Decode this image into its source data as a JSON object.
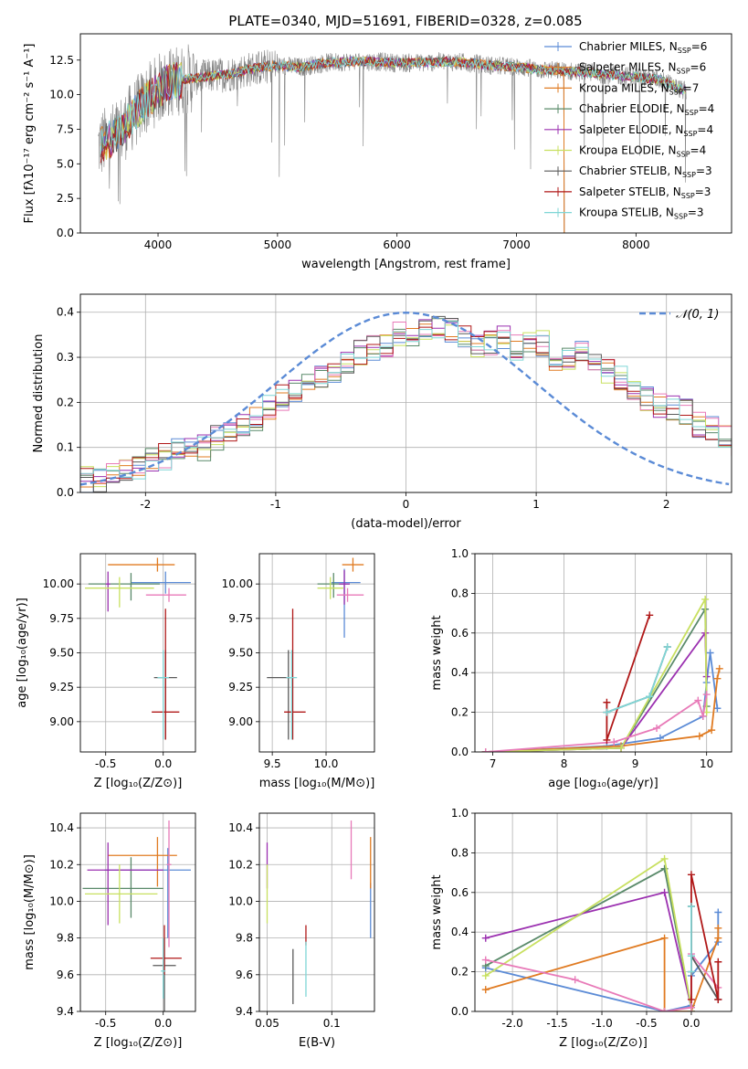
{
  "figure": {
    "title": "PLATE=0340, MJD=51691, FIBERID=0328, z=0.085"
  },
  "colors": {
    "chabrier_miles": "#5b8bd6",
    "salpeter_miles": "#e07b22",
    "kroupa_miles": "#e07b22",
    "chabrier_elodie": "#5a8a6a",
    "salpeter_elodie": "#9b30b0",
    "kroupa_elodie": "#c8e060",
    "chabrier_stelib": "#5a5a5a",
    "salpeter_stelib": "#b01818",
    "kroupa_stelib": "#7fd6d6",
    "pink": "#e87ab8",
    "normal_curve": "#5b8bd6",
    "grey_data": "#808080"
  },
  "chart_data": [
    {
      "id": "spectrum",
      "type": "line",
      "title": "PLATE=0340, MJD=51691, FIBERID=0328, z=0.085",
      "xlabel": "wavelength [Angstrom, rest frame]",
      "ylabel": "Flux [fλ10⁻¹⁷ erg cm⁻² s⁻¹ A⁻¹]",
      "xlim": [
        3350,
        8800
      ],
      "ylim": [
        0,
        14.4
      ],
      "xticks": [
        4000,
        5000,
        6000,
        7000,
        8000
      ],
      "yticks": [
        0.0,
        2.5,
        5.0,
        7.5,
        10.0,
        12.5
      ],
      "legend_position": "top-right",
      "legend": [
        {
          "label": "Chabrier MILES, N",
          "sub": "SSP",
          "suffix": "=6",
          "color": "#5b8bd6"
        },
        {
          "label": "Salpeter MILES, N",
          "sub": "SSP",
          "suffix": "=6",
          "color": "#e07b22"
        },
        {
          "label": "Kroupa MILES, N",
          "sub": "SSP",
          "suffix": "=7",
          "color": "#e07b22"
        },
        {
          "label": "Chabrier ELODIE, N",
          "sub": "SSP",
          "suffix": "=4",
          "color": "#5a8a6a"
        },
        {
          "label": "Salpeter ELODIE, N",
          "sub": "SSP",
          "suffix": "=4",
          "color": "#9b30b0"
        },
        {
          "label": "Kroupa ELODIE, N",
          "sub": "SSP",
          "suffix": "=4",
          "color": "#c8e060"
        },
        {
          "label": "Chabrier STELIB, N",
          "sub": "SSP",
          "suffix": "=3",
          "color": "#5a5a5a"
        },
        {
          "label": "Salpeter STELIB, N",
          "sub": "SSP",
          "suffix": "=3",
          "color": "#b01818"
        },
        {
          "label": "Kroupa STELIB, N",
          "sub": "SSP",
          "suffix": "=3",
          "color": "#7fd6d6"
        }
      ],
      "continuum": {
        "x": [
          3500,
          3600,
          3700,
          3800,
          3900,
          4000,
          4100,
          4200,
          4400,
          4600,
          4800,
          5000,
          5200,
          5400,
          5600,
          5800,
          6000,
          6200,
          6400,
          6600,
          6800,
          7000,
          7200,
          7400,
          7600,
          7800,
          8000,
          8200,
          8400
        ],
        "y": [
          6.3,
          6.8,
          7.5,
          8.6,
          9.6,
          10.4,
          10.9,
          11.1,
          11.3,
          11.5,
          11.9,
          12.1,
          12.0,
          12.3,
          12.4,
          12.4,
          12.3,
          12.3,
          12.4,
          12.3,
          12.1,
          12.0,
          11.8,
          11.7,
          11.6,
          11.4,
          11.3,
          11.1,
          10.3
        ]
      },
      "model_ends_at": 7400
    },
    {
      "id": "residuals",
      "type": "bar",
      "xlabel": "(data-model)/error",
      "ylabel": "Normed distribution",
      "xlim": [
        -2.5,
        2.5
      ],
      "ylim": [
        0,
        0.44
      ],
      "xticks": [
        -2,
        -1,
        0,
        1,
        2
      ],
      "yticks": [
        0.0,
        0.1,
        0.2,
        0.3,
        0.4
      ],
      "legend_position": "top-right",
      "legend": [
        {
          "label": "𝒩(0, 1)",
          "color": "#5b8bd6"
        }
      ],
      "bin_width": 0.1,
      "bin_start": -2.5,
      "series_base": [
        0.03,
        0.03,
        0.04,
        0.05,
        0.06,
        0.07,
        0.08,
        0.09,
        0.1,
        0.1,
        0.12,
        0.14,
        0.15,
        0.16,
        0.19,
        0.21,
        0.23,
        0.24,
        0.26,
        0.27,
        0.29,
        0.31,
        0.32,
        0.33,
        0.35,
        0.34,
        0.36,
        0.37,
        0.36,
        0.35,
        0.33,
        0.33,
        0.34,
        0.32,
        0.33,
        0.33,
        0.3,
        0.3,
        0.31,
        0.29,
        0.27,
        0.25,
        0.22,
        0.21,
        0.19,
        0.19,
        0.18,
        0.15,
        0.14,
        0.13,
        0.11,
        0.1,
        0.09,
        0.08,
        0.07,
        0.06,
        0.05,
        0.05,
        0.04,
        0.04
      ]
    },
    {
      "id": "age_vs_Z",
      "type": "scatter",
      "xlabel": "Z [log₁₀(Z/Z⊙)]",
      "ylabel": "age  [log₁₀(age/yr)]",
      "xlim": [
        -0.72,
        0.28
      ],
      "ylim": [
        8.78,
        10.22
      ],
      "xticks": [
        -0.5,
        0.0
      ],
      "yticks": [
        9.0,
        9.25,
        9.5,
        9.75,
        10.0
      ],
      "points": [
        {
          "x": 0.02,
          "y": 10.01,
          "xerr": [
            0.3,
            0.22
          ],
          "yerr": [
            0.08,
            0.08
          ],
          "color": "#5b8bd6"
        },
        {
          "x": -0.05,
          "y": 10.14,
          "xerr": [
            0.43,
            0.15
          ],
          "yerr": [
            0.05,
            0.05
          ],
          "color": "#e07b22"
        },
        {
          "x": -0.28,
          "y": 10.0,
          "xerr": [
            0.37,
            0.25
          ],
          "yerr": [
            0.12,
            0.08
          ],
          "color": "#5a8a6a"
        },
        {
          "x": -0.48,
          "y": 10.0,
          "xerr": [
            0.02,
            0.02
          ],
          "yerr": [
            0.2,
            0.09
          ],
          "color": "#9b30b0"
        },
        {
          "x": -0.38,
          "y": 9.97,
          "xerr": [
            0.3,
            0.3
          ],
          "yerr": [
            0.14,
            0.08
          ],
          "color": "#c8e060"
        },
        {
          "x": 0.05,
          "y": 9.92,
          "xerr": [
            0.2,
            0.15
          ],
          "yerr": [
            0.05,
            0.05
          ],
          "color": "#e87ab8"
        },
        {
          "x": 0.02,
          "y": 9.32,
          "xerr": [
            0.1,
            0.1
          ],
          "yerr": [
            0.45,
            0.2
          ],
          "color": "#5a5a5a"
        },
        {
          "x": 0.02,
          "y": 9.07,
          "xerr": [
            0.12,
            0.12
          ],
          "yerr": [
            0.2,
            0.75
          ],
          "color": "#b01818"
        },
        {
          "x": 0.0,
          "y": 9.32,
          "xerr": [
            0.05,
            0.05
          ],
          "yerr": [
            0.45,
            0.2
          ],
          "color": "#7fd6d6"
        }
      ]
    },
    {
      "id": "age_vs_mass",
      "type": "scatter",
      "xlabel": "mass [log₁₀(M/M⊙)]",
      "ylabel": "",
      "xlim": [
        9.38,
        10.45
      ],
      "ylim": [
        8.78,
        10.22
      ],
      "xticks": [
        9.5,
        10.0
      ],
      "yticks": [
        9.0,
        9.25,
        9.5,
        9.75,
        10.0
      ],
      "points": [
        {
          "x": 10.17,
          "y": 10.01,
          "xerr": [
            0.12,
            0.15
          ],
          "yerr": [
            0.4,
            0.1
          ],
          "color": "#5b8bd6"
        },
        {
          "x": 10.25,
          "y": 10.14,
          "xerr": [
            0.1,
            0.1
          ],
          "yerr": [
            0.05,
            0.05
          ],
          "color": "#e07b22"
        },
        {
          "x": 10.07,
          "y": 10.0,
          "xerr": [
            0.15,
            0.15
          ],
          "yerr": [
            0.1,
            0.08
          ],
          "color": "#5a8a6a"
        },
        {
          "x": 10.17,
          "y": 10.0,
          "xerr": [
            0.05,
            0.05
          ],
          "yerr": [
            0.15,
            0.1
          ],
          "color": "#9b30b0"
        },
        {
          "x": 10.04,
          "y": 9.97,
          "xerr": [
            0.12,
            0.12
          ],
          "yerr": [
            0.08,
            0.08
          ],
          "color": "#c8e060"
        },
        {
          "x": 10.2,
          "y": 9.92,
          "xerr": [
            0.1,
            0.15
          ],
          "yerr": [
            0.05,
            0.05
          ],
          "color": "#e87ab8"
        },
        {
          "x": 9.65,
          "y": 9.32,
          "xerr": [
            0.2,
            0.05
          ],
          "yerr": [
            0.45,
            0.2
          ],
          "color": "#5a5a5a"
        },
        {
          "x": 9.69,
          "y": 9.07,
          "xerr": [
            0.08,
            0.12
          ],
          "yerr": [
            0.2,
            0.75
          ],
          "color": "#b01818"
        },
        {
          "x": 9.68,
          "y": 9.32,
          "xerr": [
            0.05,
            0.05
          ],
          "yerr": [
            0.45,
            0.2
          ],
          "color": "#7fd6d6"
        }
      ]
    },
    {
      "id": "weight_vs_age",
      "type": "line",
      "xlabel": "age  [log₁₀(age/yr)]",
      "ylabel": "mass weight",
      "xlim": [
        6.75,
        10.35
      ],
      "ylim": [
        0,
        1.0
      ],
      "xticks": [
        7,
        8,
        9,
        10
      ],
      "yticks": [
        0.0,
        0.2,
        0.4,
        0.6,
        0.8,
        1.0
      ],
      "series": [
        {
          "color": "#5b8bd6",
          "x": [
            6.9,
            8.6,
            9.35,
            9.95,
            10.0,
            10.05,
            10.15
          ],
          "y": [
            0.0,
            0.03,
            0.07,
            0.18,
            0.35,
            0.5,
            0.22
          ]
        },
        {
          "color": "#e07b22",
          "x": [
            6.9,
            8.8,
            9.9,
            10.07,
            10.15,
            10.18
          ],
          "y": [
            0.0,
            0.03,
            0.08,
            0.11,
            0.37,
            0.42
          ]
        },
        {
          "color": "#5a8a6a",
          "x": [
            6.9,
            8.8,
            9.98,
            10.0
          ],
          "y": [
            0.0,
            0.02,
            0.72,
            0.23
          ]
        },
        {
          "color": "#9b30b0",
          "x": [
            6.9,
            8.8,
            9.98,
            10.0
          ],
          "y": [
            0.0,
            0.02,
            0.6,
            0.38
          ]
        },
        {
          "color": "#c8e060",
          "x": [
            6.9,
            8.8,
            9.98,
            10.0
          ],
          "y": [
            0.0,
            0.02,
            0.77,
            0.2
          ]
        },
        {
          "color": "#e87ab8",
          "x": [
            6.9,
            8.7,
            9.3,
            9.88,
            9.95,
            10.0
          ],
          "y": [
            0.0,
            0.05,
            0.12,
            0.26,
            0.18,
            0.29
          ]
        },
        {
          "color": "#5a5a5a",
          "x": [
            8.6,
            9.2,
            9.45
          ],
          "y": [
            0.2,
            0.28,
            0.53
          ]
        },
        {
          "color": "#b01818",
          "x": [
            8.6,
            8.6,
            9.2
          ],
          "y": [
            0.25,
            0.06,
            0.69
          ]
        },
        {
          "color": "#7fd6d6",
          "x": [
            8.6,
            9.2,
            9.45
          ],
          "y": [
            0.2,
            0.28,
            0.53
          ]
        }
      ]
    },
    {
      "id": "mass_vs_Z",
      "type": "scatter",
      "xlabel": "Z [log₁₀(Z/Z⊙)]",
      "ylabel": "mass [log₁₀(M/M⊙)]",
      "xlim": [
        -0.72,
        0.28
      ],
      "ylim": [
        9.4,
        10.48
      ],
      "xticks": [
        -0.5,
        0.0
      ],
      "yticks": [
        9.4,
        9.6,
        9.8,
        10.0,
        10.2,
        10.4
      ],
      "points": [
        {
          "x": 0.04,
          "y": 10.17,
          "xerr": [
            0.55,
            0.2
          ],
          "yerr": [
            0.37,
            0.12
          ],
          "color": "#5b8bd6"
        },
        {
          "x": -0.05,
          "y": 10.25,
          "xerr": [
            0.43,
            0.17
          ],
          "yerr": [
            0.17,
            0.1
          ],
          "color": "#e07b22"
        },
        {
          "x": -0.28,
          "y": 10.07,
          "xerr": [
            0.42,
            0.28
          ],
          "yerr": [
            0.16,
            0.17
          ],
          "color": "#5a8a6a"
        },
        {
          "x": -0.48,
          "y": 10.17,
          "xerr": [
            0.18,
            0.48
          ],
          "yerr": [
            0.3,
            0.15
          ],
          "color": "#9b30b0"
        },
        {
          "x": -0.38,
          "y": 10.04,
          "xerr": [
            0.3,
            0.33
          ],
          "yerr": [
            0.16,
            0.16
          ],
          "color": "#c8e060"
        },
        {
          "x": 0.05,
          "y": 10.2,
          "xerr": [
            0.02,
            0.02
          ],
          "yerr": [
            0.45,
            0.24
          ],
          "color": "#e87ab8"
        },
        {
          "x": 0.01,
          "y": 9.65,
          "xerr": [
            0.1,
            0.1
          ],
          "yerr": [
            0.25,
            0.15
          ],
          "color": "#5a5a5a"
        },
        {
          "x": 0.01,
          "y": 9.69,
          "xerr": [
            0.12,
            0.15
          ],
          "yerr": [
            0.09,
            0.18
          ],
          "color": "#b01818"
        },
        {
          "x": 0.0,
          "y": 9.62,
          "xerr": [
            0.02,
            0.02
          ],
          "yerr": [
            0.15,
            0.18
          ],
          "color": "#7fd6d6"
        }
      ]
    },
    {
      "id": "mass_vs_ebv",
      "type": "scatter",
      "xlabel": "E(B-V)",
      "ylabel": "",
      "xlim": [
        0.044,
        0.133
      ],
      "ylim": [
        9.4,
        10.48
      ],
      "xticks": [
        0.05,
        0.1
      ],
      "yticks": [
        9.4,
        9.6,
        9.8,
        10.0,
        10.2,
        10.4
      ],
      "points": [
        {
          "x": 0.13,
          "y": 10.0,
          "yerr": [
            0.2,
            0.1
          ],
          "color": "#5b8bd6"
        },
        {
          "x": 0.13,
          "y": 10.25,
          "yerr": [
            0.18,
            0.1
          ],
          "color": "#e07b22"
        },
        {
          "x": 0.05,
          "y": 10.17,
          "yerr": [
            0.1,
            0.15
          ],
          "color": "#9b30b0"
        },
        {
          "x": 0.05,
          "y": 10.04,
          "yerr": [
            0.16,
            0.16
          ],
          "color": "#c8e060"
        },
        {
          "x": 0.115,
          "y": 10.27,
          "yerr": [
            0.15,
            0.17
          ],
          "color": "#e87ab8"
        },
        {
          "x": 0.07,
          "y": 9.59,
          "yerr": [
            0.15,
            0.15
          ],
          "color": "#5a5a5a"
        },
        {
          "x": 0.08,
          "y": 9.81,
          "yerr": [
            0.05,
            0.06
          ],
          "color": "#b01818"
        },
        {
          "x": 0.08,
          "y": 9.62,
          "yerr": [
            0.14,
            0.16
          ],
          "color": "#7fd6d6"
        }
      ]
    },
    {
      "id": "weight_vs_Z",
      "type": "line",
      "xlabel": "Z [log₁₀(Z/Z⊙)]",
      "ylabel": "mass weight",
      "xlim": [
        -2.42,
        0.45
      ],
      "ylim": [
        0,
        1.0
      ],
      "xticks": [
        -2.0,
        -1.5,
        -1.0,
        -0.5,
        0.0
      ],
      "yticks": [
        0.0,
        0.2,
        0.4,
        0.6,
        0.8,
        1.0
      ],
      "series": [
        {
          "color": "#5b8bd6",
          "x": [
            -2.3,
            -0.3,
            0.0,
            0.0,
            0.3,
            0.3
          ],
          "y": [
            0.22,
            0.0,
            0.03,
            0.18,
            0.35,
            0.5
          ]
        },
        {
          "color": "#e07b22",
          "x": [
            -2.3,
            -0.3,
            -0.3,
            0.0,
            0.3,
            0.3
          ],
          "y": [
            0.11,
            0.37,
            0.0,
            0.0,
            0.37,
            0.42
          ]
        },
        {
          "color": "#5a8a6a",
          "x": [
            -2.3,
            -0.3,
            0.0,
            0.0
          ],
          "y": [
            0.23,
            0.72,
            0.02,
            0.0
          ]
        },
        {
          "color": "#9b30b0",
          "x": [
            -2.3,
            -0.3,
            0.0,
            0.0
          ],
          "y": [
            0.37,
            0.6,
            0.02,
            0.0
          ]
        },
        {
          "color": "#c8e060",
          "x": [
            -2.3,
            -0.3,
            0.0,
            0.0
          ],
          "y": [
            0.18,
            0.77,
            0.02,
            0.0
          ]
        },
        {
          "color": "#e87ab8",
          "x": [
            -2.3,
            -1.3,
            -0.3,
            0.0,
            0.0,
            0.3,
            0.3
          ],
          "y": [
            0.26,
            0.16,
            0.0,
            0.02,
            0.29,
            0.12,
            0.06
          ]
        },
        {
          "color": "#5a5a5a",
          "x": [
            0.0,
            0.0,
            0.0,
            0.3
          ],
          "y": [
            0.2,
            0.53,
            0.28,
            0.06
          ]
        },
        {
          "color": "#b01818",
          "x": [
            0.0,
            0.0,
            0.3,
            0.3
          ],
          "y": [
            0.06,
            0.69,
            0.06,
            0.25
          ]
        },
        {
          "color": "#7fd6d6",
          "x": [
            0.0,
            0.0,
            0.0
          ],
          "y": [
            0.2,
            0.53,
            0.28
          ]
        }
      ]
    }
  ]
}
